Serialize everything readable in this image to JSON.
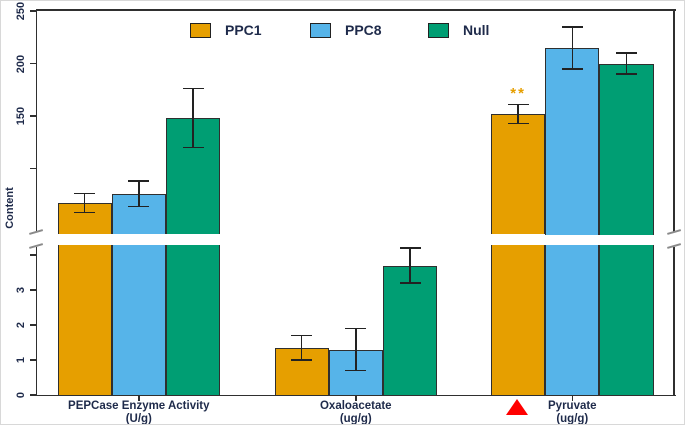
{
  "chart_data": {
    "type": "bar",
    "title": "",
    "ylabel": "Content",
    "grid": false,
    "legend_position": "top",
    "broken_y_axis": {
      "lower_range": [
        0,
        4.2
      ],
      "upper_range": [
        38,
        252
      ],
      "lower_ticks": [
        {
          "value": 4,
          "label": ""
        },
        {
          "value": 3,
          "label": "3"
        },
        {
          "value": 2,
          "label": "2"
        },
        {
          "value": 1,
          "label": "1"
        },
        {
          "value": 0,
          "label": "0"
        }
      ],
      "upper_ticks": [
        {
          "value": 250,
          "label": "250"
        },
        {
          "value": 200,
          "label": "200"
        },
        {
          "value": 150,
          "label": "150"
        },
        {
          "value": 100,
          "label": ""
        }
      ]
    },
    "categories": [
      {
        "line1": "PEPCase Enzyme Activity",
        "line2": "(U/g)"
      },
      {
        "line1": "Oxaloacetate",
        "line2": "(ug/g)"
      },
      {
        "line1": "Pyruvate",
        "line2": "(ug/g)"
      }
    ],
    "series": [
      {
        "name": "PPC1",
        "color": "#E69F00",
        "values": [
          67,
          1.35,
          152
        ],
        "errors": [
          9,
          0.35,
          9
        ]
      },
      {
        "name": "PPC8",
        "color": "#56B4E9",
        "values": [
          76,
          1.3,
          215
        ],
        "errors": [
          12,
          0.6,
          20
        ]
      },
      {
        "name": "Null",
        "color": "#009E73",
        "values": [
          148,
          3.7,
          200
        ],
        "errors": [
          28,
          0.5,
          10
        ]
      }
    ],
    "annotations": [
      {
        "type": "significance",
        "text": "**",
        "category_index": 2,
        "series_index": 0,
        "color": "#E69F00"
      },
      {
        "type": "marker",
        "shape": "triangle-up",
        "category_index": 2,
        "series_index": 0,
        "color": "#FF0000",
        "location": "below-x-axis"
      }
    ]
  }
}
